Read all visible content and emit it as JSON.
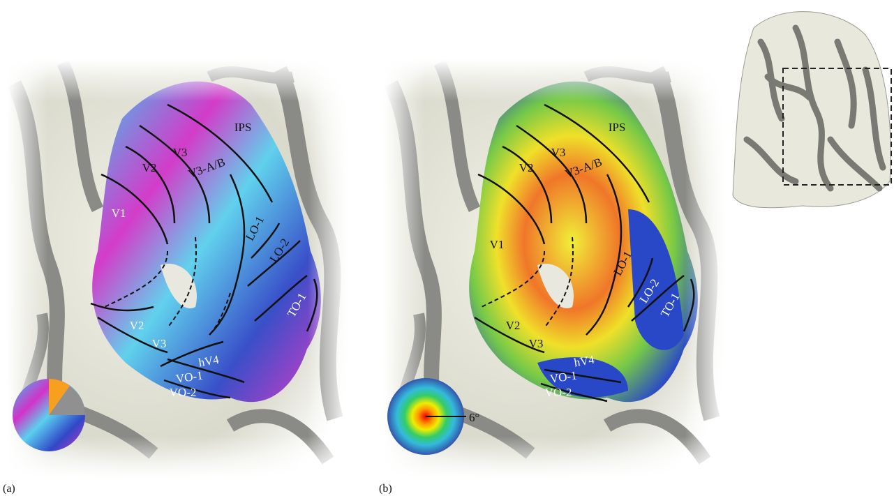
{
  "panels": [
    {
      "label": "(a)",
      "regions": [
        "IPS",
        "V3",
        "V2",
        "V3-A/B",
        "V1",
        "LO-1",
        "LO-2",
        "TO-1",
        "V2",
        "V3",
        "hV4",
        "VO-1",
        "VO-2"
      ]
    },
    {
      "label": "(b)",
      "regions": [
        "IPS",
        "V3",
        "V2",
        "V3-A/B",
        "V1",
        "LO-1",
        "LO-2",
        "TO-1",
        "V2",
        "V3",
        "hV4",
        "VO-1",
        "VO-2"
      ],
      "scale_label": "6°"
    }
  ]
}
